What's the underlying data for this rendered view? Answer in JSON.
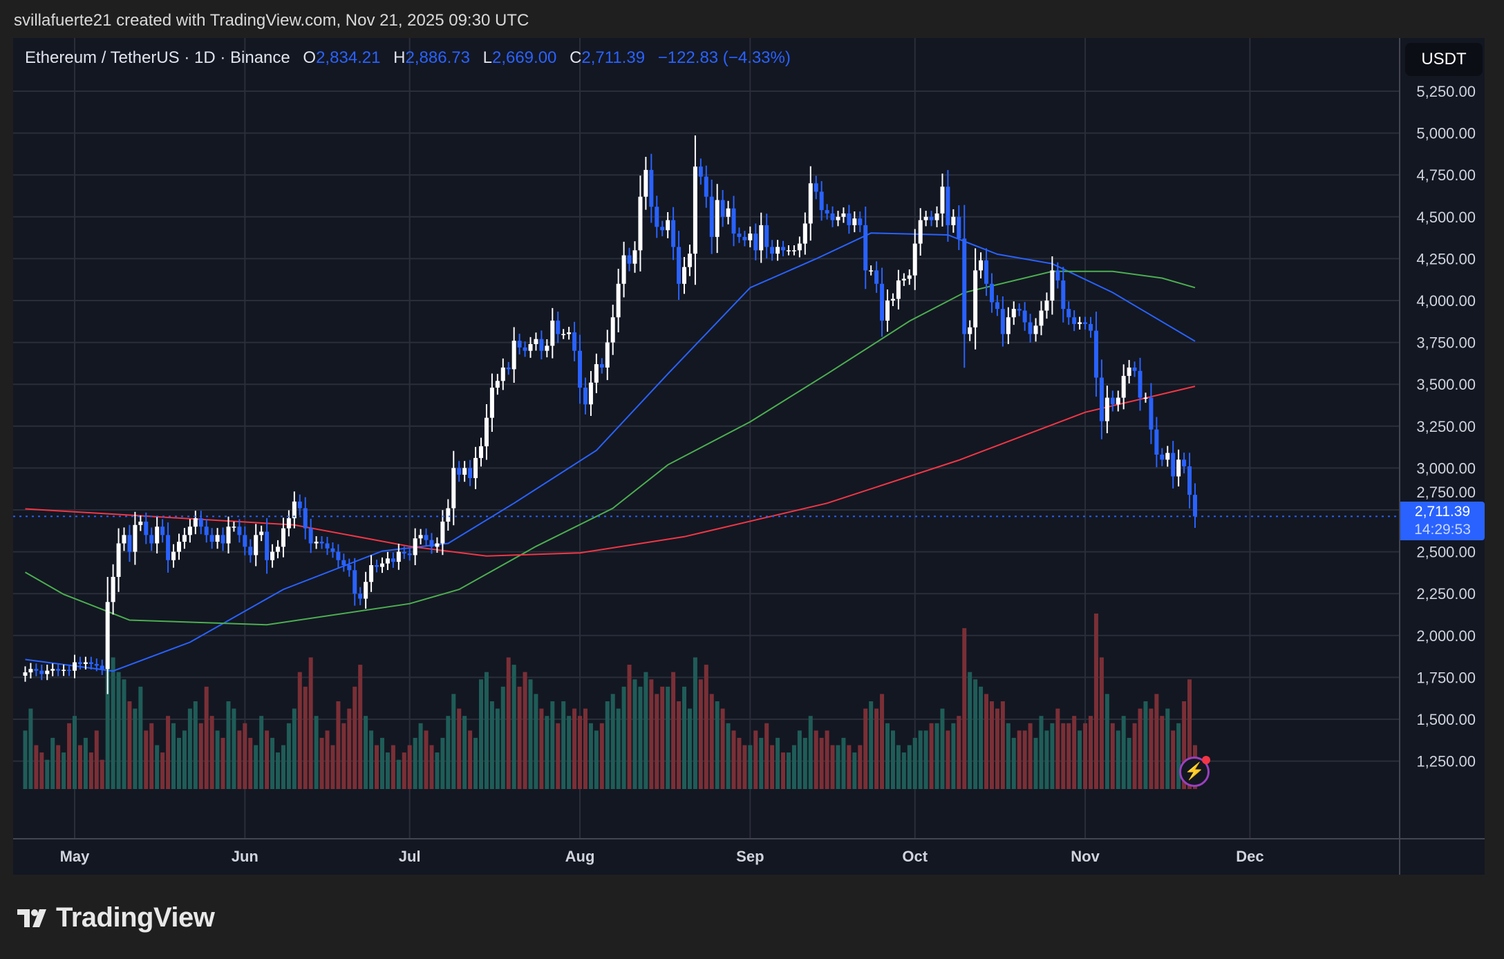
{
  "credit": "svillafuerte21 created with TradingView.com, Nov 21, 2025 09:30 UTC",
  "legend": {
    "symbol": "Ethereum / TetherUS · 1D · Binance",
    "o_label": "O",
    "o": "2,834.21",
    "h_label": "H",
    "h": "2,886.73",
    "l_label": "L",
    "l": "2,669.00",
    "c_label": "C",
    "c": "2,711.39",
    "change": "−122.83 (−4.33%)"
  },
  "currency_button": "USDT",
  "price_badge": {
    "price": "2,711.39",
    "countdown": "14:29:53"
  },
  "brand": "TradingView",
  "colors": {
    "background": "#131722",
    "up_candle": "#ffffff",
    "down_candle": "#2962ff",
    "volume_up": "#1f5c58",
    "volume_down": "#7a2f36",
    "ma_blue": "#2962ff",
    "ma_green": "#4caf50",
    "ma_red": "#f23645",
    "grid": "#2a2e39"
  },
  "icons": {
    "alert": "lightning-bolt-icon"
  },
  "chart_data": {
    "type": "candlestick",
    "start_date": "2025-04-22",
    "interval": "1D",
    "last_price": 2711.39,
    "ylim": [
      1150,
      5400
    ],
    "y_ticks": [
      "5,250.00",
      "5,000.00",
      "4,750.00",
      "4,500.00",
      "4,250.00",
      "4,000.00",
      "3,750.00",
      "3,500.00",
      "3,250.00",
      "3,000.00",
      "2,750.00",
      "2,500.00",
      "2,250.00",
      "2,000.00",
      "1,750.00",
      "1,500.00",
      "1,250.00"
    ],
    "x_ticks": [
      {
        "label": "May",
        "date": "2025-05-01"
      },
      {
        "label": "Jun",
        "date": "2025-06-01"
      },
      {
        "label": "Jul",
        "date": "2025-07-01"
      },
      {
        "label": "Aug",
        "date": "2025-08-01"
      },
      {
        "label": "Sep",
        "date": "2025-09-01"
      },
      {
        "label": "Oct",
        "date": "2025-10-01"
      },
      {
        "label": "Nov",
        "date": "2025-11-01"
      },
      {
        "label": "Dec",
        "date": "2025-12-01"
      }
    ],
    "grid": true,
    "closes": [
      1780,
      1800,
      1790,
      1770,
      1790,
      1800,
      1790,
      1795,
      1790,
      1840,
      1830,
      1840,
      1830,
      1820,
      1800,
      2200,
      2350,
      2550,
      2600,
      2500,
      2660,
      2680,
      2600,
      2550,
      2650,
      2600,
      2450,
      2500,
      2560,
      2600,
      2650,
      2700,
      2650,
      2600,
      2560,
      2600,
      2550,
      2650,
      2650,
      2600,
      2530,
      2480,
      2600,
      2620,
      2450,
      2500,
      2530,
      2640,
      2700,
      2800,
      2760,
      2640,
      2550,
      2560,
      2550,
      2520,
      2500,
      2450,
      2420,
      2390,
      2250,
      2220,
      2320,
      2420,
      2410,
      2430,
      2460,
      2440,
      2500,
      2490,
      2480,
      2580,
      2600,
      2570,
      2530,
      2550,
      2680,
      2760,
      3000,
      2960,
      3000,
      2940,
      3060,
      3130,
      3300,
      3480,
      3520,
      3600,
      3590,
      3760,
      3720,
      3700,
      3740,
      3770,
      3700,
      3730,
      3880,
      3800,
      3800,
      3810,
      3700,
      3480,
      3380,
      3510,
      3620,
      3600,
      3750,
      3900,
      4100,
      4270,
      4220,
      4300,
      4620,
      4780,
      4560,
      4440,
      4420,
      4480,
      4320,
      4100,
      4200,
      4280,
      4800,
      4740,
      4620,
      4380,
      4600,
      4500,
      4550,
      4400,
      4380,
      4360,
      4400,
      4300,
      4450,
      4320,
      4280,
      4320,
      4300,
      4300,
      4300,
      4340,
      4460,
      4700,
      4650,
      4540,
      4520,
      4480,
      4500,
      4520,
      4450,
      4490,
      4450,
      4180,
      4180,
      4100,
      3880,
      4000,
      4010,
      4120,
      4130,
      4150,
      4340,
      4480,
      4500,
      4480,
      4520,
      4680,
      4450,
      4500,
      4370,
      3800,
      3840,
      4180,
      4240,
      4100,
      3990,
      3950,
      3800,
      3900,
      3950,
      3940,
      3870,
      3800,
      3850,
      3940,
      4000,
      4180,
      4120,
      3950,
      3900,
      3860,
      3870,
      3860,
      3820,
      3540,
      3280,
      3420,
      3380,
      3420,
      3550,
      3600,
      3580,
      3420,
      3420,
      3230,
      3080,
      3050,
      3090,
      2950,
      3050,
      3010,
      2840,
      2711.39
    ],
    "first_open": 1760,
    "volume_relative": [
      40,
      55,
      30,
      25,
      20,
      35,
      30,
      25,
      45,
      50,
      30,
      35,
      25,
      40,
      20,
      95,
      90,
      80,
      75,
      60,
      55,
      70,
      40,
      45,
      30,
      25,
      50,
      45,
      35,
      40,
      55,
      60,
      45,
      70,
      50,
      40,
      35,
      60,
      55,
      40,
      45,
      35,
      30,
      50,
      40,
      35,
      25,
      30,
      45,
      55,
      80,
      70,
      90,
      50,
      35,
      40,
      30,
      60,
      45,
      55,
      70,
      85,
      50,
      40,
      30,
      35,
      25,
      30,
      20,
      25,
      30,
      35,
      45,
      40,
      30,
      25,
      35,
      50,
      65,
      55,
      50,
      40,
      35,
      75,
      80,
      60,
      55,
      70,
      90,
      85,
      70,
      80,
      75,
      65,
      55,
      50,
      60,
      45,
      60,
      50,
      55,
      50,
      55,
      45,
      40,
      45,
      60,
      65,
      55,
      70,
      85,
      75,
      70,
      80,
      75,
      65,
      70,
      70,
      80,
      60,
      70,
      55,
      90,
      75,
      85,
      65,
      60,
      55,
      45,
      40,
      35,
      30,
      30,
      40,
      35,
      45,
      30,
      35,
      25,
      25,
      30,
      40,
      35,
      50,
      40,
      35,
      40,
      30,
      30,
      35,
      30,
      25,
      30,
      55,
      60,
      55,
      65,
      45,
      40,
      30,
      25,
      30,
      35,
      40,
      40,
      45,
      45,
      55,
      40,
      45,
      50,
      110,
      80,
      75,
      70,
      65,
      60,
      55,
      60,
      45,
      35,
      40,
      40,
      45,
      35,
      50,
      40,
      45,
      55,
      45,
      45,
      50,
      40,
      45,
      50,
      120,
      90,
      65,
      45,
      40,
      50,
      35,
      45,
      55,
      60,
      55,
      65,
      50,
      55,
      40,
      45,
      60,
      75,
      30
    ],
    "moving_averages": [
      {
        "color": "#2962ff",
        "points": [
          [
            "2025-04-22",
            1857
          ],
          [
            "2025-05-08",
            1788
          ],
          [
            "2025-05-22",
            1960
          ],
          [
            "2025-06-08",
            2275
          ],
          [
            "2025-06-26",
            2504
          ],
          [
            "2025-07-08",
            2550
          ],
          [
            "2025-07-20",
            2790
          ],
          [
            "2025-08-04",
            3105
          ],
          [
            "2025-08-17",
            3562
          ],
          [
            "2025-09-01",
            4077
          ],
          [
            "2025-09-13",
            4249
          ],
          [
            "2025-09-23",
            4403
          ],
          [
            "2025-10-07",
            4392
          ],
          [
            "2025-10-16",
            4277
          ],
          [
            "2025-10-26",
            4220
          ],
          [
            "2025-11-06",
            4048
          ],
          [
            "2025-11-21",
            3757
          ]
        ]
      },
      {
        "color": "#4caf50",
        "points": [
          [
            "2025-04-22",
            2378
          ],
          [
            "2025-04-29",
            2246
          ],
          [
            "2025-05-11",
            2092
          ],
          [
            "2025-06-05",
            2064
          ],
          [
            "2025-07-01",
            2190
          ],
          [
            "2025-07-10",
            2275
          ],
          [
            "2025-07-24",
            2532
          ],
          [
            "2025-08-07",
            2760
          ],
          [
            "2025-08-17",
            3019
          ],
          [
            "2025-09-01",
            3276
          ],
          [
            "2025-09-15",
            3562
          ],
          [
            "2025-09-30",
            3877
          ],
          [
            "2025-10-10",
            4048
          ],
          [
            "2025-10-26",
            4174
          ],
          [
            "2025-11-06",
            4174
          ],
          [
            "2025-11-15",
            4134
          ],
          [
            "2025-11-21",
            4077
          ]
        ]
      },
      {
        "color": "#f23645",
        "points": [
          [
            "2025-04-22",
            2756
          ],
          [
            "2025-06-10",
            2660
          ],
          [
            "2025-07-01",
            2532
          ],
          [
            "2025-07-15",
            2475
          ],
          [
            "2025-08-01",
            2493
          ],
          [
            "2025-08-20",
            2590
          ],
          [
            "2025-09-15",
            2790
          ],
          [
            "2025-10-09",
            3047
          ],
          [
            "2025-11-01",
            3333
          ],
          [
            "2025-11-21",
            3488
          ]
        ]
      }
    ]
  }
}
